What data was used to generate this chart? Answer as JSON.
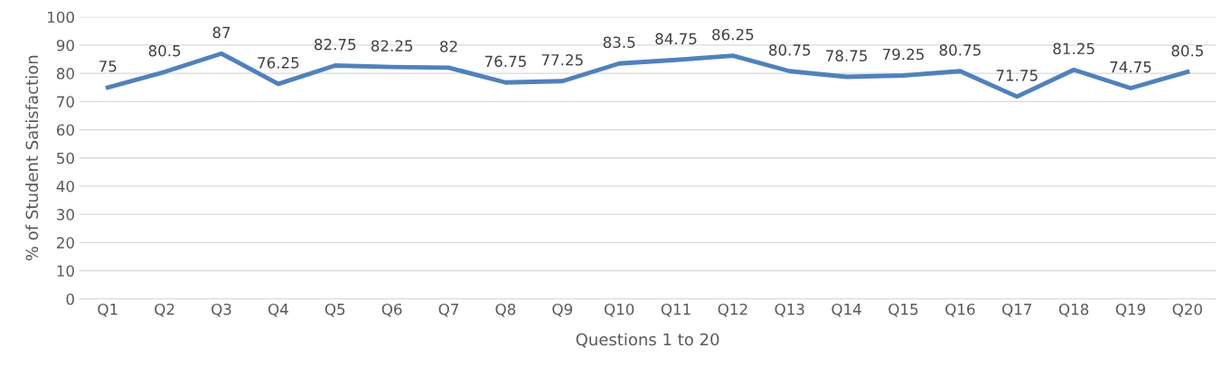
{
  "chart_data": {
    "type": "line",
    "xlabel": "Questions 1 to 20",
    "ylabel": "% of Student Satisfaction",
    "categories": [
      "Q1",
      "Q2",
      "Q3",
      "Q4",
      "Q5",
      "Q6",
      "Q7",
      "Q8",
      "Q9",
      "Q10",
      "Q11",
      "Q12",
      "Q13",
      "Q14",
      "Q15",
      "Q16",
      "Q17",
      "Q18",
      "Q19",
      "Q20"
    ],
    "series": [
      {
        "color": "#4f81bd",
        "values": [
          75,
          80.5,
          87,
          76.25,
          82.75,
          82.25,
          82,
          76.75,
          77.25,
          83.5,
          84.75,
          86.25,
          80.75,
          78.75,
          79.25,
          80.75,
          71.75,
          81.25,
          74.75,
          80.5
        ]
      }
    ],
    "ylim": [
      0,
      100
    ],
    "yticks": [
      0,
      10,
      20,
      30,
      40,
      50,
      60,
      70,
      80,
      90,
      100
    ],
    "grid": "y",
    "data_labels": true,
    "marker": "none",
    "line_style": "solid"
  }
}
